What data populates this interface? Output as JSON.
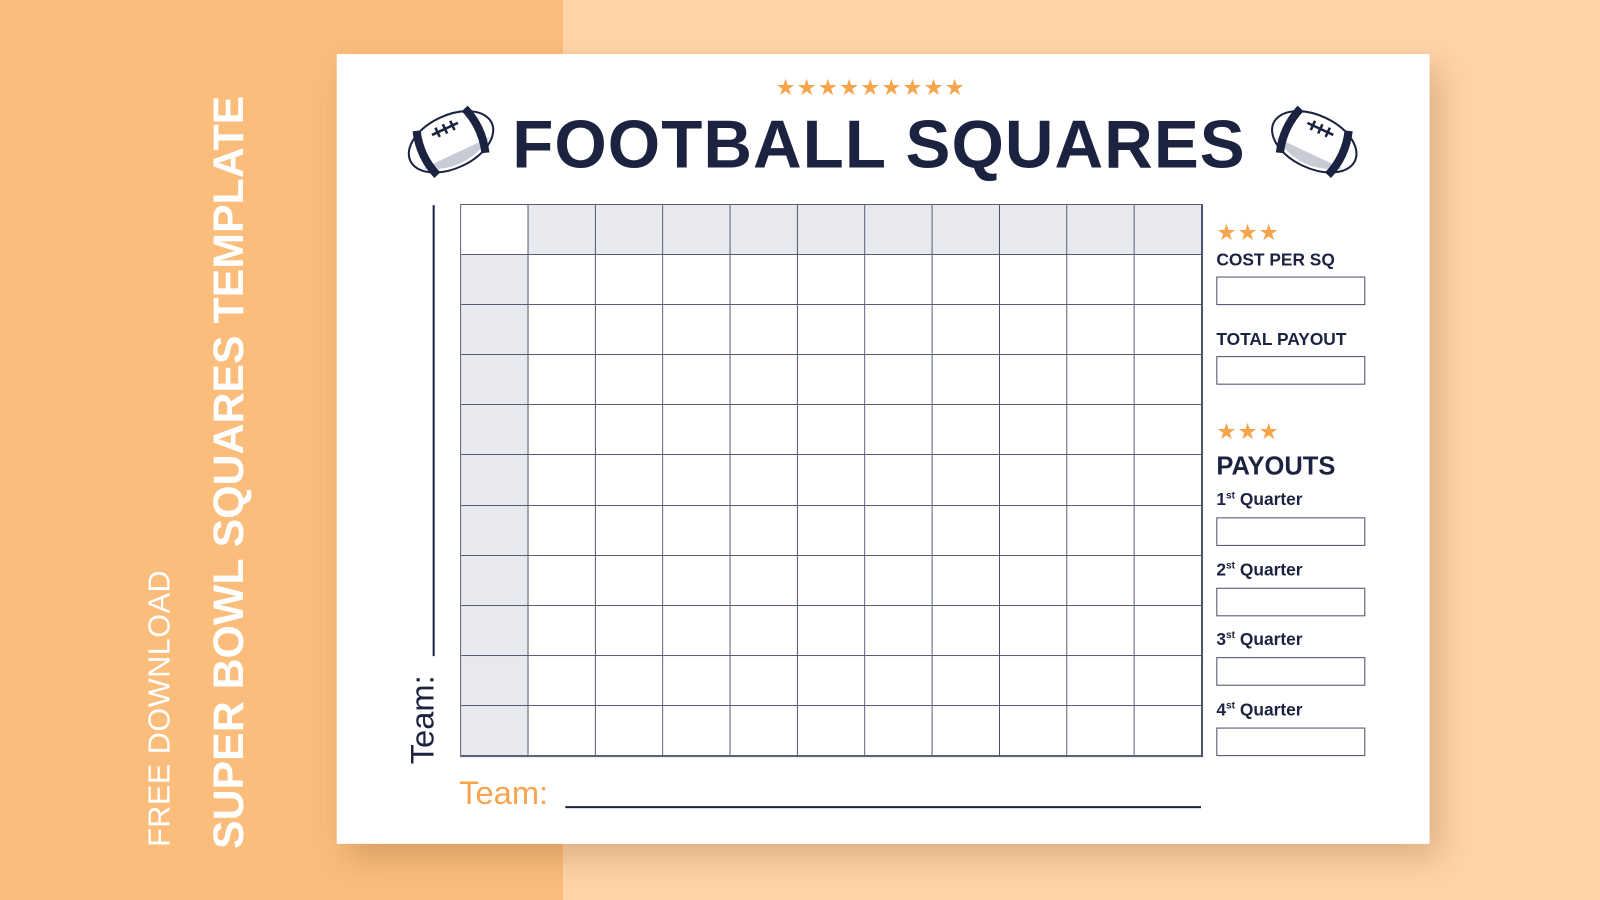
{
  "side_text": {
    "line1": "FREE DOWNLOAD",
    "line2": "SUPER BOWL SQUARES TEMPLATE"
  },
  "header": {
    "stars": "★★★★★★★★★",
    "title": "FOOTBALL SQUARES"
  },
  "grid": {
    "rows": 11,
    "cols": 11,
    "shade_color": "#e8e9ef"
  },
  "team_left": "Team:",
  "team_bottom": "Team:",
  "sidebar": {
    "stars": "★★★",
    "cost_label": "COST PER SQ",
    "total_label": "TOTAL PAYOUT",
    "payouts_label": "PAYOUTS",
    "quarters": [
      {
        "num": "1",
        "sup": "st",
        "label": "Quarter"
      },
      {
        "num": "2",
        "sup": "st",
        "label": "Quarter"
      },
      {
        "num": "3",
        "sup": "st",
        "label": "Quarter"
      },
      {
        "num": "4",
        "sup": "st",
        "label": "Quarter"
      }
    ]
  },
  "colors": {
    "navy": "#1c2340",
    "orange": "#f7a44d",
    "bg_left": "#fabd7c",
    "bg_right": "#fed4a8"
  }
}
